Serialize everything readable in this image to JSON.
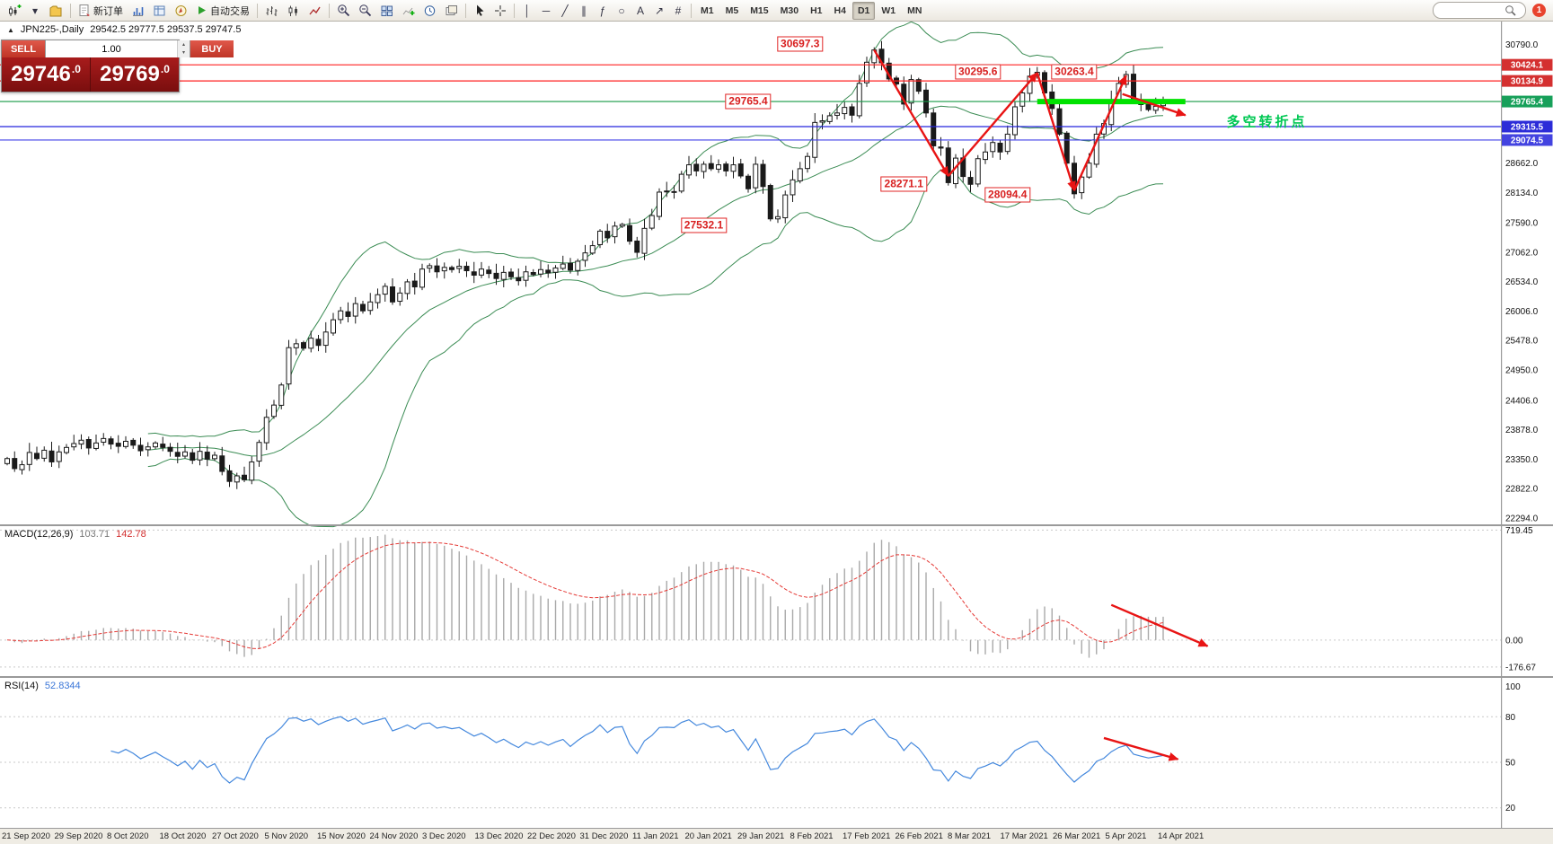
{
  "toolbar": {
    "new_order": "新订单",
    "autotrading": "自动交易",
    "timeframes": [
      "M1",
      "M5",
      "M15",
      "M30",
      "H1",
      "H4",
      "D1",
      "W1",
      "MN"
    ],
    "active_timeframe": "D1",
    "badge_count": "1",
    "search_placeholder": ""
  },
  "chart": {
    "caption": {
      "toggle_icon": "▲",
      "symbol": "JPN225-,Daily",
      "ohlc": "29542.5 29777.5 29537.5 29747.5"
    },
    "trade_panel": {
      "sell_label": "SELL",
      "buy_label": "BUY",
      "volume": "1.00",
      "sell_price_main": "29746",
      "sell_price_sup": ".0",
      "buy_price_main": "29769",
      "buy_price_sup": ".0"
    },
    "annotations": [
      {
        "text": "30697.3",
        "idx": 107,
        "price": 30800
      },
      {
        "text": "29765.4",
        "idx": 100,
        "price": 29765
      },
      {
        "text": "27532.1",
        "idx": 94,
        "price": 27540
      },
      {
        "text": "28271.1",
        "idx": 121,
        "price": 28280
      },
      {
        "text": "30295.6",
        "idx": 131,
        "price": 30300
      },
      {
        "text": "28094.4",
        "idx": 135,
        "price": 28090
      },
      {
        "text": "30263.4",
        "idx": 144,
        "price": 30290
      }
    ],
    "note": {
      "text": "多空转折点",
      "idx": 170,
      "price": 29420,
      "color": "#00c853"
    },
    "hlines": [
      {
        "price": 30424.1,
        "color": "#ff2020",
        "badge": "30424.1",
        "badge_bg": "#d43030"
      },
      {
        "price": 30134.9,
        "color": "#ff2020",
        "badge": "30134.9",
        "badge_bg": "#d43030"
      },
      {
        "price": 29765.4,
        "color": "#149a46",
        "badge": "29765.4",
        "badge_bg": "#17a05a"
      },
      {
        "price": 29315.5,
        "color": "#2525dd",
        "badge": "29315.5",
        "badge_bg": "#2c2cd8"
      },
      {
        "price": 29074.5,
        "color": "#4040e8",
        "badge": "29074.5",
        "badge_bg": "#4343e0"
      }
    ],
    "green_segment": {
      "price": 29765.4,
      "idx1": 139,
      "idx2": 159,
      "color": "#00e200"
    },
    "zigzag": {
      "color": "#e81414",
      "points": [
        [
          117,
          30690
        ],
        [
          127,
          28430
        ],
        [
          139,
          30280
        ],
        [
          144,
          28170
        ],
        [
          151,
          30230
        ]
      ]
    },
    "trend_arrow": {
      "color": "#e81414",
      "points": [
        [
          150.5,
          29900
        ],
        [
          159,
          29520
        ]
      ]
    },
    "macd_arrow": {
      "color": "#e81414",
      "points": [
        [
          149,
          230
        ],
        [
          162,
          -40
        ]
      ]
    },
    "rsi_arrow": {
      "color": "#e81414",
      "points": [
        [
          148,
          66
        ],
        [
          158,
          52
        ]
      ]
    },
    "price_axis": [
      [
        "30790.0",
        30790
      ],
      [
        "28662.0",
        28662
      ],
      [
        "28134.0",
        28134
      ],
      [
        "27590.0",
        27590
      ],
      [
        "27062.0",
        27062
      ],
      [
        "26534.0",
        26534
      ],
      [
        "26006.0",
        26006
      ],
      [
        "25478.0",
        25478
      ],
      [
        "24950.0",
        24950
      ],
      [
        "24406.0",
        24406
      ],
      [
        "23878.0",
        23878
      ],
      [
        "23350.0",
        23350
      ],
      [
        "22822.0",
        22822
      ],
      [
        "22294.0",
        22294
      ]
    ]
  },
  "indicators": {
    "macd": {
      "name": "MACD(12,26,9)",
      "value_main": "103.71",
      "value_signal": "142.78",
      "scale": [
        [
          "719.45",
          719.45
        ],
        [
          "0.00",
          0
        ],
        [
          "-176.67",
          -176.67
        ]
      ],
      "levels": [
        719.45,
        0,
        -176.67
      ]
    },
    "rsi": {
      "name": "RSI(14)",
      "value": "52.8344",
      "scale": [
        [
          "100",
          100
        ],
        [
          "80",
          80
        ],
        [
          "50",
          50
        ],
        [
          "20",
          20
        ]
      ],
      "levels": [
        80,
        50,
        20
      ]
    }
  },
  "chart_data": {
    "type": "candlestick",
    "symbol": "JPN225",
    "timeframe": "Daily",
    "x_labels": [
      "21 Sep 2020",
      "29 Sep 2020",
      "8 Oct 2020",
      "18 Oct 2020",
      "27 Oct 2020",
      "5 Nov 2020",
      "15 Nov 2020",
      "24 Nov 2020",
      "3 Dec 2020",
      "13 Dec 2020",
      "22 Dec 2020",
      "31 Dec 2020",
      "11 Jan 2021",
      "20 Jan 2021",
      "29 Jan 2021",
      "8 Feb 2021",
      "17 Feb 2021",
      "26 Feb 2021",
      "8 Mar 2021",
      "17 Mar 2021",
      "26 Mar 2021",
      "5 Apr 2021",
      "14 Apr 2021"
    ],
    "closes": [
      23360,
      23180,
      23250,
      23470,
      23360,
      23510,
      23300,
      23480,
      23560,
      23630,
      23690,
      23550,
      23640,
      23720,
      23620,
      23580,
      23670,
      23600,
      23500,
      23570,
      23640,
      23560,
      23490,
      23400,
      23480,
      23330,
      23490,
      23350,
      23420,
      23130,
      22950,
      23050,
      22980,
      23300,
      23650,
      24100,
      24320,
      24680,
      25350,
      25420,
      25340,
      25520,
      25390,
      25630,
      25850,
      26010,
      25910,
      26140,
      26010,
      26170,
      26300,
      26450,
      26170,
      26330,
      26530,
      26440,
      26760,
      26820,
      26710,
      26790,
      26750,
      26810,
      26730,
      26650,
      26760,
      26680,
      26590,
      26700,
      26620,
      26550,
      26710,
      26660,
      26750,
      26690,
      26780,
      26850,
      26740,
      26900,
      27050,
      27180,
      27440,
      27320,
      27530,
      27560,
      27260,
      27060,
      27490,
      27720,
      28140,
      28160,
      28150,
      28460,
      28630,
      28520,
      28640,
      28560,
      28630,
      28520,
      28630,
      28430,
      28200,
      28640,
      28240,
      27660,
      27700,
      28090,
      28360,
      28560,
      28780,
      29390,
      29420,
      29510,
      29560,
      29660,
      29520,
      30090,
      30470,
      30690,
      30460,
      30170,
      30080,
      29720,
      30160,
      29950,
      29560,
      28970,
      28930,
      28310,
      28750,
      28420,
      28280,
      28740,
      28860,
      29030,
      28860,
      29180,
      29670,
      29920,
      30220,
      30290,
      29920,
      29640,
      29180,
      28660,
      28110,
      28410,
      28660,
      29180,
      29370,
      29790,
      30090,
      30250,
      29810,
      29710,
      29620,
      29680,
      29750
    ],
    "bollinger": {
      "period": 20,
      "deviation": 2
    }
  }
}
